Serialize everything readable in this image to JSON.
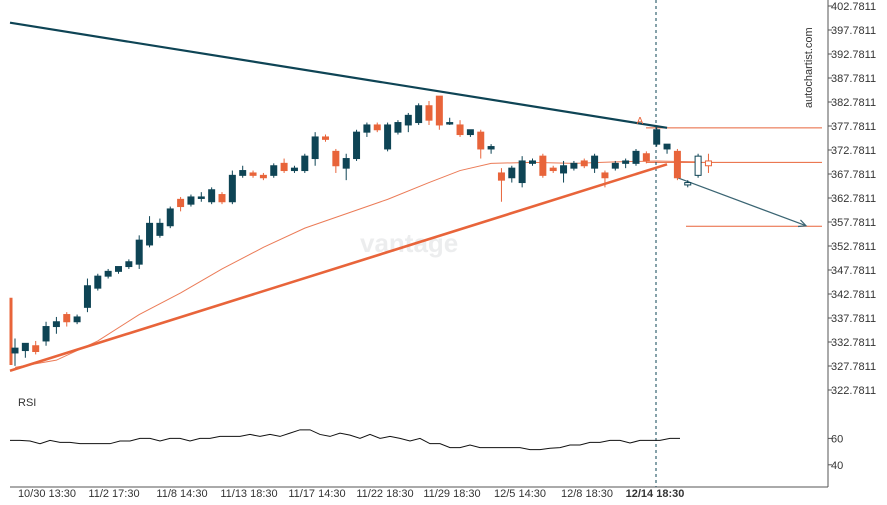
{
  "chart_data": {
    "type": "candlestick",
    "watermark_brand": "vantage",
    "side_watermark": "autochartist.com",
    "y_ticks": [
      "402.7811",
      "397.7811",
      "392.7811",
      "387.7811",
      "382.7811",
      "377.7811",
      "372.7811",
      "367.7811",
      "362.7811",
      "357.7811",
      "352.7811",
      "347.7811",
      "342.7811",
      "337.7811",
      "332.7811",
      "327.7811",
      "322.7811"
    ],
    "ylim": [
      322.7811,
      402.7811
    ],
    "x_ticks": [
      "10/30 13:30",
      "11/2 17:30",
      "11/8 14:30",
      "11/13 18:30",
      "11/17 14:30",
      "11/22 18:30",
      "11/29 18:30",
      "12/5 14:30",
      "12/8 18:30",
      "12/14 18:30"
    ],
    "x_ticks_bold_index": 9,
    "annotation": "A",
    "candles": [
      {
        "o": 330.5,
        "h": 333.5,
        "l": 327.8,
        "c": 331.5
      },
      {
        "o": 331.0,
        "h": 332.0,
        "l": 329.5,
        "c": 332.5
      },
      {
        "o": 332.0,
        "h": 333.0,
        "l": 330.2,
        "c": 330.8
      },
      {
        "o": 333.0,
        "h": 337.0,
        "l": 332.0,
        "c": 336.0
      },
      {
        "o": 336.0,
        "h": 338.0,
        "l": 334.5,
        "c": 337.0
      },
      {
        "o": 338.5,
        "h": 339.0,
        "l": 336.0,
        "c": 337.0
      },
      {
        "o": 337.0,
        "h": 338.5,
        "l": 336.5,
        "c": 338.0
      },
      {
        "o": 340.0,
        "h": 346.0,
        "l": 339.0,
        "c": 344.5
      },
      {
        "o": 344.0,
        "h": 347.0,
        "l": 343.5,
        "c": 346.5
      },
      {
        "o": 346.5,
        "h": 348.0,
        "l": 346.0,
        "c": 347.5
      },
      {
        "o": 347.5,
        "h": 348.5,
        "l": 347.0,
        "c": 348.5
      },
      {
        "o": 348.5,
        "h": 350.0,
        "l": 348.0,
        "c": 349.5
      },
      {
        "o": 349.0,
        "h": 355.0,
        "l": 348.0,
        "c": 354.0
      },
      {
        "o": 353.0,
        "h": 359.0,
        "l": 352.5,
        "c": 357.5
      },
      {
        "o": 355.0,
        "h": 358.5,
        "l": 354.5,
        "c": 357.5
      },
      {
        "o": 357.0,
        "h": 361.0,
        "l": 356.5,
        "c": 360.5
      },
      {
        "o": 362.5,
        "h": 363.0,
        "l": 360.0,
        "c": 361.0
      },
      {
        "o": 361.5,
        "h": 363.5,
        "l": 361.0,
        "c": 363.0
      },
      {
        "o": 363.0,
        "h": 364.0,
        "l": 362.0,
        "c": 363.0
      },
      {
        "o": 362.0,
        "h": 365.0,
        "l": 361.5,
        "c": 364.5
      },
      {
        "o": 363.5,
        "h": 364.0,
        "l": 361.5,
        "c": 362.0
      },
      {
        "o": 362.0,
        "h": 368.5,
        "l": 361.5,
        "c": 367.5
      },
      {
        "o": 367.5,
        "h": 369.5,
        "l": 367.0,
        "c": 368.5
      },
      {
        "o": 368.0,
        "h": 368.5,
        "l": 367.0,
        "c": 367.5
      },
      {
        "o": 367.5,
        "h": 368.0,
        "l": 366.5,
        "c": 367.0
      },
      {
        "o": 367.5,
        "h": 370.0,
        "l": 367.0,
        "c": 369.5
      },
      {
        "o": 370.0,
        "h": 371.0,
        "l": 368.0,
        "c": 368.5
      },
      {
        "o": 368.5,
        "h": 369.5,
        "l": 368.0,
        "c": 369.0
      },
      {
        "o": 368.5,
        "h": 372.0,
        "l": 368.0,
        "c": 371.5
      },
      {
        "o": 371.0,
        "h": 376.5,
        "l": 369.5,
        "c": 375.5
      },
      {
        "o": 375.5,
        "h": 376.0,
        "l": 374.5,
        "c": 375.0
      },
      {
        "o": 372.5,
        "h": 373.0,
        "l": 368.0,
        "c": 369.5
      },
      {
        "o": 369.0,
        "h": 372.0,
        "l": 366.5,
        "c": 371.0
      },
      {
        "o": 371.0,
        "h": 377.0,
        "l": 370.5,
        "c": 376.5
      },
      {
        "o": 376.5,
        "h": 378.5,
        "l": 375.5,
        "c": 378.0
      },
      {
        "o": 378.0,
        "h": 378.5,
        "l": 376.5,
        "c": 377.0
      },
      {
        "o": 373.0,
        "h": 378.5,
        "l": 372.5,
        "c": 378.0
      },
      {
        "o": 376.5,
        "h": 379.0,
        "l": 376.0,
        "c": 378.5
      },
      {
        "o": 378.0,
        "h": 380.5,
        "l": 376.5,
        "c": 380.0
      },
      {
        "o": 378.5,
        "h": 382.5,
        "l": 378.0,
        "c": 382.0
      },
      {
        "o": 382.0,
        "h": 383.0,
        "l": 378.0,
        "c": 379.0
      },
      {
        "o": 384.0,
        "h": 384.0,
        "l": 377.0,
        "c": 378.0
      },
      {
        "o": 378.5,
        "h": 379.5,
        "l": 378.0,
        "c": 378.5
      },
      {
        "o": 378.0,
        "h": 379.0,
        "l": 375.5,
        "c": 376.0
      },
      {
        "o": 376.0,
        "h": 377.0,
        "l": 375.5,
        "c": 377.0
      },
      {
        "o": 376.5,
        "h": 377.0,
        "l": 371.0,
        "c": 373.0
      },
      {
        "o": 373.0,
        "h": 374.0,
        "l": 372.0,
        "c": 373.5
      },
      {
        "o": 368.0,
        "h": 369.0,
        "l": 362.0,
        "c": 366.5
      },
      {
        "o": 367.0,
        "h": 369.5,
        "l": 366.0,
        "c": 369.0
      },
      {
        "o": 366.0,
        "h": 371.5,
        "l": 365.0,
        "c": 370.5
      },
      {
        "o": 370.0,
        "h": 371.0,
        "l": 369.5,
        "c": 370.5
      },
      {
        "o": 371.5,
        "h": 372.0,
        "l": 367.0,
        "c": 367.5
      },
      {
        "o": 369.0,
        "h": 369.5,
        "l": 368.0,
        "c": 368.5
      },
      {
        "o": 368.0,
        "h": 370.5,
        "l": 366.0,
        "c": 369.5
      },
      {
        "o": 369.0,
        "h": 370.5,
        "l": 368.5,
        "c": 370.0
      },
      {
        "o": 370.5,
        "h": 371.0,
        "l": 369.0,
        "c": 369.5
      },
      {
        "o": 369.0,
        "h": 372.0,
        "l": 368.0,
        "c": 371.5
      },
      {
        "o": 368.0,
        "h": 368.5,
        "l": 365.0,
        "c": 367.0
      },
      {
        "o": 369.0,
        "h": 370.5,
        "l": 368.5,
        "c": 370.0
      },
      {
        "o": 370.0,
        "h": 371.0,
        "l": 369.0,
        "c": 370.5
      },
      {
        "o": 370.0,
        "h": 373.0,
        "l": 369.5,
        "c": 372.5
      },
      {
        "o": 372.0,
        "h": 372.5,
        "l": 370.0,
        "c": 370.5
      },
      {
        "o": 374.0,
        "h": 377.5,
        "l": 373.5,
        "c": 377.0
      },
      {
        "o": 373.0,
        "h": 374.0,
        "l": 372.0,
        "c": 374.0
      },
      {
        "o": 372.5,
        "h": 373.0,
        "l": 366.5,
        "c": 367.0
      },
      {
        "o": 365.5,
        "h": 366.5,
        "l": 365.0,
        "c": 366.0
      },
      {
        "o": 367.5,
        "h": 372.0,
        "l": 367.0,
        "c": 371.5
      },
      {
        "o": 370.5,
        "h": 372.0,
        "l": 368.0,
        "c": 369.5
      }
    ],
    "upper_trendline": [
      [
        0,
        399.3
      ],
      [
        63,
        377.4
      ]
    ],
    "lower_trendline": [
      [
        0,
        326.8
      ],
      [
        63,
        369.8
      ]
    ],
    "projection_line": [
      [
        64,
        367.0
      ],
      [
        78,
        357.0
      ]
    ],
    "resistance_level": 377.4,
    "mid_level": 370.2,
    "target_level": 356.9,
    "moving_average": [
      [
        0,
        327.5
      ],
      [
        4,
        329.0
      ],
      [
        8,
        333.0
      ],
      [
        12,
        338.5
      ],
      [
        16,
        343.0
      ],
      [
        20,
        348.0
      ],
      [
        24,
        352.5
      ],
      [
        28,
        356.5
      ],
      [
        32,
        359.5
      ],
      [
        36,
        362.5
      ],
      [
        40,
        366.0
      ],
      [
        43,
        368.5
      ],
      [
        46,
        370.0
      ],
      [
        50,
        370.2
      ],
      [
        54,
        370.0
      ],
      [
        58,
        370.3
      ],
      [
        62,
        370.5
      ],
      [
        66,
        370.3
      ]
    ],
    "rsi_ticks": [
      "60",
      "40"
    ],
    "rsi_ylim": [
      30,
      80
    ],
    "rsi": [
      58.5,
      58.5,
      58.0,
      56.0,
      58.5,
      57.0,
      57.0,
      56.0,
      56.0,
      56.0,
      56.0,
      58.0,
      58.0,
      60.0,
      60.0,
      58.0,
      60.0,
      60.0,
      58.0,
      60.0,
      60.0,
      61.5,
      61.5,
      61.5,
      63.0,
      61.5,
      63.0,
      61.5,
      64.0,
      66.5,
      66.5,
      63.0,
      61.5,
      64.0,
      62.5,
      60.0,
      63.0,
      60.0,
      61.5,
      60.0,
      58.0,
      60.0,
      56.0,
      56.0,
      53.0,
      53.0,
      55.0,
      53.0,
      53.0,
      53.0,
      53.0,
      53.0,
      51.5,
      51.5,
      52.5,
      53.0,
      55.0,
      55.0,
      57.0,
      57.0,
      58.5,
      58.5,
      56.5,
      58.5,
      58.5,
      58.5,
      60.0,
      60.0
    ],
    "rsi_label": "RSI",
    "colors": {
      "bull": "#0e4455",
      "bear": "#e8643a",
      "trend_upper": "#0e4455",
      "trend_lower": "#e8643a",
      "projection": "#3b6573",
      "vline": "#0e4455"
    }
  }
}
